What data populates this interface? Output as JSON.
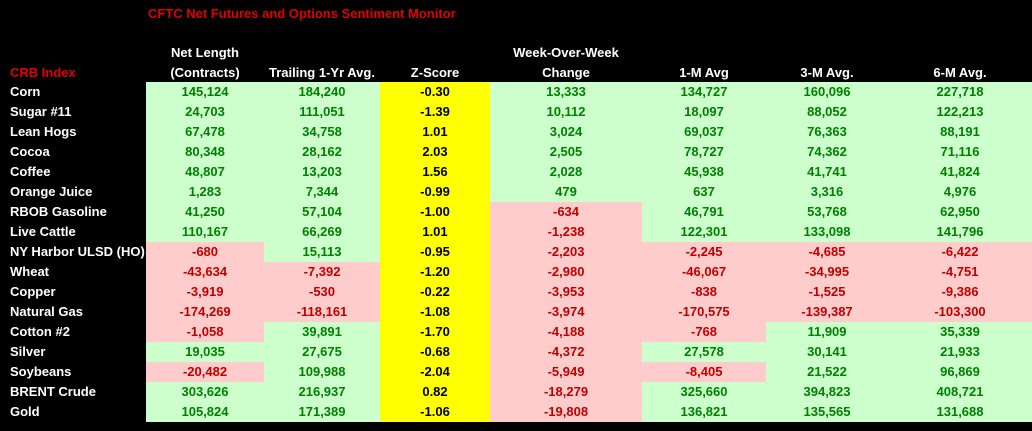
{
  "title": "CFTC Net Futures and Options Sentiment Monitor",
  "headers": {
    "crb": "CRB Index",
    "net_length_1": "Net Length",
    "net_length_2": "(Contracts)",
    "trailing": "Trailing 1-Yr Avg.",
    "zscore": "Z-Score",
    "wow_1": "Week-Over-Week",
    "wow_2": "Change",
    "m1": "1-M Avg",
    "m3": "3-M Avg.",
    "m6": "6-M Avg."
  },
  "rows": [
    {
      "name": "Corn",
      "net": "145,124",
      "trail": "184,240",
      "z": "-0.30",
      "wow": "13,333",
      "m1": "134,727",
      "m3": "160,096",
      "m6": "227,718"
    },
    {
      "name": "Sugar #11",
      "net": "24,703",
      "trail": "111,051",
      "z": "-1.39",
      "wow": "10,112",
      "m1": "18,097",
      "m3": "88,052",
      "m6": "122,213"
    },
    {
      "name": "Lean Hogs",
      "net": "67,478",
      "trail": "34,758",
      "z": "1.01",
      "wow": "3,024",
      "m1": "69,037",
      "m3": "76,363",
      "m6": "88,191"
    },
    {
      "name": "Cocoa",
      "net": "80,348",
      "trail": "28,162",
      "z": "2.03",
      "wow": "2,505",
      "m1": "78,727",
      "m3": "74,362",
      "m6": "71,116"
    },
    {
      "name": "Coffee",
      "net": "48,807",
      "trail": "13,203",
      "z": "1.56",
      "wow": "2,028",
      "m1": "45,938",
      "m3": "41,741",
      "m6": "41,824"
    },
    {
      "name": "Orange Juice",
      "net": "1,283",
      "trail": "7,344",
      "z": "-0.99",
      "wow": "479",
      "m1": "637",
      "m3": "3,316",
      "m6": "4,976"
    },
    {
      "name": "RBOB Gasoline",
      "net": "41,250",
      "trail": "57,104",
      "z": "-1.00",
      "wow": "-634",
      "m1": "46,791",
      "m3": "53,768",
      "m6": "62,950"
    },
    {
      "name": "Live Cattle",
      "net": "110,167",
      "trail": "66,269",
      "z": "1.01",
      "wow": "-1,238",
      "m1": "122,301",
      "m3": "133,098",
      "m6": "141,796"
    },
    {
      "name": "NY Harbor ULSD (HO)",
      "net": "-680",
      "trail": "15,113",
      "z": "-0.95",
      "wow": "-2,203",
      "m1": "-2,245",
      "m3": "-4,685",
      "m6": "-6,422"
    },
    {
      "name": "Wheat",
      "net": "-43,634",
      "trail": "-7,392",
      "z": "-1.20",
      "wow": "-2,980",
      "m1": "-46,067",
      "m3": "-34,995",
      "m6": "-4,751"
    },
    {
      "name": "Copper",
      "net": "-3,919",
      "trail": "-530",
      "z": "-0.22",
      "wow": "-3,953",
      "m1": "-838",
      "m3": "-1,525",
      "m6": "-9,386"
    },
    {
      "name": "Natural Gas",
      "net": "-174,269",
      "trail": "-118,161",
      "z": "-1.08",
      "wow": "-3,974",
      "m1": "-170,575",
      "m3": "-139,387",
      "m6": "-103,300"
    },
    {
      "name": "Cotton #2",
      "net": "-1,058",
      "trail": "39,891",
      "z": "-1.70",
      "wow": "-4,188",
      "m1": "-768",
      "m3": "11,909",
      "m6": "35,339"
    },
    {
      "name": "Silver",
      "net": "19,035",
      "trail": "27,675",
      "z": "-0.68",
      "wow": "-4,372",
      "m1": "27,578",
      "m3": "30,141",
      "m6": "21,933"
    },
    {
      "name": "Soybeans",
      "net": "-20,482",
      "trail": "109,988",
      "z": "-2.04",
      "wow": "-5,949",
      "m1": "-8,405",
      "m3": "21,522",
      "m6": "96,869"
    },
    {
      "name": "BRENT Crude",
      "net": "303,626",
      "trail": "216,937",
      "z": "0.82",
      "wow": "-18,279",
      "m1": "325,660",
      "m3": "394,823",
      "m6": "408,721"
    },
    {
      "name": "Gold",
      "net": "105,824",
      "trail": "171,389",
      "z": "-1.06",
      "wow": "-19,808",
      "m1": "136,821",
      "m3": "135,565",
      "m6": "131,688"
    }
  ],
  "colors": {
    "positive_bg": "#ccffcc",
    "positive_text": "#008000",
    "negative_bg": "#ffcccc",
    "negative_text": "#c00000",
    "zscore_bg": "#ffff00",
    "title": "#e00000"
  }
}
